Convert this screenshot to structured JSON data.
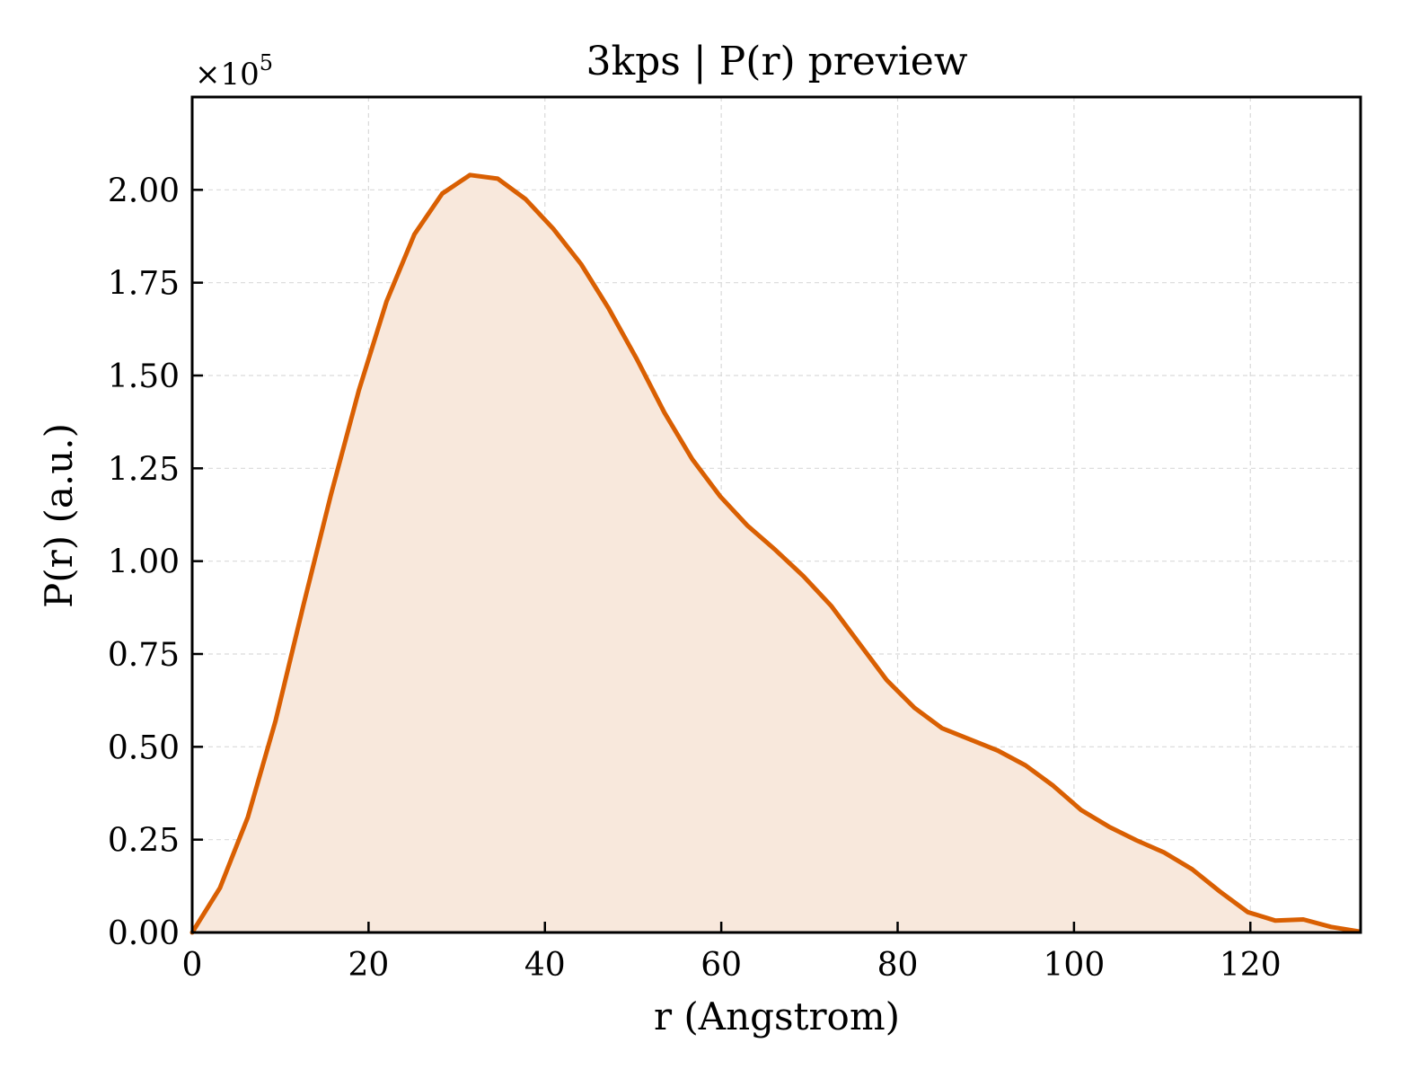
{
  "chart_data": {
    "type": "area",
    "title": "3kps | P(r) preview",
    "xlabel": "r (Angstrom)",
    "ylabel": "P(r) (a.u.)",
    "y_multiplier_label": "×10",
    "y_multiplier_exp": "5",
    "xlim": [
      0,
      132.5
    ],
    "ylim": [
      0,
      2.25
    ],
    "xticks": [
      0,
      20,
      40,
      60,
      80,
      100,
      120
    ],
    "xtick_labels": [
      "0",
      "20",
      "40",
      "60",
      "80",
      "100",
      "120"
    ],
    "yticks": [
      0,
      0.25,
      0.5,
      0.75,
      1.0,
      1.25,
      1.5,
      1.75,
      2.0
    ],
    "ytick_labels": [
      "0.00",
      "0.25",
      "0.50",
      "0.75",
      "1.00",
      "1.25",
      "1.50",
      "1.75",
      "2.00"
    ],
    "grid": true,
    "colors": {
      "line": "#d95f02",
      "fill": "#f8e8dc"
    },
    "series": [
      {
        "x": [
          0,
          3.15,
          6.3,
          9.45,
          12.6,
          15.75,
          18.9,
          22.05,
          25.2,
          28.35,
          31.5,
          34.65,
          37.8,
          40.95,
          44.1,
          47.25,
          50.4,
          53.55,
          56.7,
          59.85,
          63.0,
          66.15,
          69.3,
          72.45,
          75.6,
          78.75,
          81.9,
          85.05,
          88.2,
          91.35,
          94.5,
          97.65,
          100.8,
          103.95,
          107.1,
          110.25,
          113.4,
          116.55,
          119.7,
          122.85,
          126.0,
          129.15,
          132.3
        ],
        "y": [
          0.0,
          0.12,
          0.31,
          0.57,
          0.88,
          1.18,
          1.46,
          1.7,
          1.88,
          1.99,
          2.04,
          2.03,
          1.975,
          1.895,
          1.8,
          1.68,
          1.545,
          1.4,
          1.275,
          1.175,
          1.095,
          1.03,
          0.96,
          0.88,
          0.78,
          0.68,
          0.605,
          0.55,
          0.52,
          0.49,
          0.45,
          0.395,
          0.33,
          0.285,
          0.248,
          0.215,
          0.17,
          0.11,
          0.055,
          0.032,
          0.035,
          0.015,
          0.003
        ]
      }
    ]
  }
}
